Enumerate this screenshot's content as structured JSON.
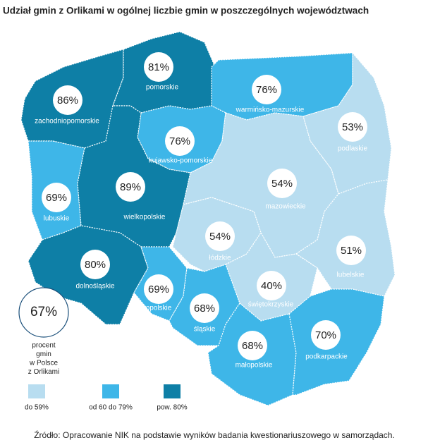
{
  "title": "Udział gmin z Orlikami w ogólnej liczbie gmin w poszczególnych województwach",
  "regions": [
    {
      "name": "zachodniopomorskie",
      "value": 86,
      "value_label": "86%",
      "color": "#0e7fa6"
    },
    {
      "name": "pomorskie",
      "value": 81,
      "value_label": "81%",
      "color": "#0e7fa6"
    },
    {
      "name": "warmińsko-mazurskie",
      "value": 76,
      "value_label": "76%",
      "color": "#3eb6e8"
    },
    {
      "name": "podlaskie",
      "value": 53,
      "value_label": "53%",
      "color": "#b8ddf0"
    },
    {
      "name": "kujawsko-pomorskie",
      "value": 76,
      "value_label": "76%",
      "color": "#3eb6e8"
    },
    {
      "name": "lubuskie",
      "value": 69,
      "value_label": "69%",
      "color": "#3eb6e8"
    },
    {
      "name": "wielkopolskie",
      "value": 89,
      "value_label": "89%",
      "color": "#0e7fa6"
    },
    {
      "name": "mazowieckie",
      "value": 54,
      "value_label": "54%",
      "color": "#b8ddf0"
    },
    {
      "name": "łódzkie",
      "value": 54,
      "value_label": "54%",
      "color": "#b8ddf0"
    },
    {
      "name": "lubelskie",
      "value": 51,
      "value_label": "51%",
      "color": "#b8ddf0"
    },
    {
      "name": "dolnośląskie",
      "value": 80,
      "value_label": "80%",
      "color": "#0e7fa6"
    },
    {
      "name": "opolskie",
      "value": 69,
      "value_label": "69%",
      "color": "#3eb6e8"
    },
    {
      "name": "świętokrzyskie",
      "value": 40,
      "value_label": "40%",
      "color": "#b8ddf0"
    },
    {
      "name": "śląskie",
      "value": 68,
      "value_label": "68%",
      "color": "#3eb6e8"
    },
    {
      "name": "małopolskie",
      "value": 68,
      "value_label": "68%",
      "color": "#3eb6e8"
    },
    {
      "name": "podkarpackie",
      "value": 70,
      "value_label": "70%",
      "color": "#3eb6e8"
    }
  ],
  "total": {
    "value": 67,
    "value_label": "67%",
    "caption": [
      "procent",
      "gmin",
      "w Polsce",
      "z Orlikami"
    ]
  },
  "legend": [
    {
      "label": "do 59%",
      "color": "#b8ddf0"
    },
    {
      "label": "od 60 do 79%",
      "color": "#3eb6e8"
    },
    {
      "label": "pow. 80%",
      "color": "#0e7fa6"
    }
  ],
  "source": "Źródło:  Opracowanie  NIK na podstawie  wyników badania  kwestionariuszowego   w samorządach."
}
